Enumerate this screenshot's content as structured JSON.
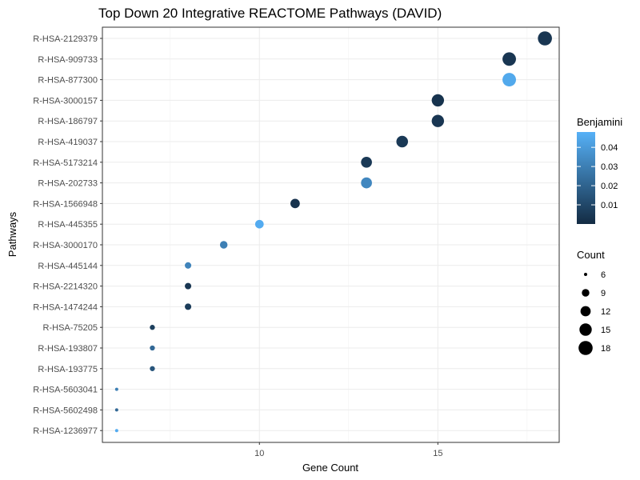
{
  "chart_data": {
    "type": "scatter",
    "title": "Top Down 20 Integrative REACTOME Pathways (DAVID)",
    "xlabel": "Gene Count",
    "ylabel": "Pathways",
    "xlim": [
      5.6,
      18.4
    ],
    "xticks": [
      10,
      15
    ],
    "grid": true,
    "categories": [
      "R-HSA-2129379",
      "R-HSA-909733",
      "R-HSA-877300",
      "R-HSA-3000157",
      "R-HSA-186797",
      "R-HSA-419037",
      "R-HSA-5173214",
      "R-HSA-202733",
      "R-HSA-1566948",
      "R-HSA-445355",
      "R-HSA-3000170",
      "R-HSA-445144",
      "R-HSA-2214320",
      "R-HSA-1474244",
      "R-HSA-75205",
      "R-HSA-193807",
      "R-HSA-193775",
      "R-HSA-5603041",
      "R-HSA-5602498",
      "R-HSA-1236977"
    ],
    "points": [
      {
        "pathway": "R-HSA-2129379",
        "count": 18,
        "benjamini": 0.004
      },
      {
        "pathway": "R-HSA-909733",
        "count": 17,
        "benjamini": 0.004
      },
      {
        "pathway": "R-HSA-877300",
        "count": 17,
        "benjamini": 0.045
      },
      {
        "pathway": "R-HSA-3000157",
        "count": 15,
        "benjamini": 0.003
      },
      {
        "pathway": "R-HSA-186797",
        "count": 15,
        "benjamini": 0.004
      },
      {
        "pathway": "R-HSA-419037",
        "count": 14,
        "benjamini": 0.005
      },
      {
        "pathway": "R-HSA-5173214",
        "count": 13,
        "benjamini": 0.005
      },
      {
        "pathway": "R-HSA-202733",
        "count": 13,
        "benjamini": 0.033
      },
      {
        "pathway": "R-HSA-1566948",
        "count": 11,
        "benjamini": 0.003
      },
      {
        "pathway": "R-HSA-445355",
        "count": 10,
        "benjamini": 0.046
      },
      {
        "pathway": "R-HSA-3000170",
        "count": 9,
        "benjamini": 0.03
      },
      {
        "pathway": "R-HSA-445144",
        "count": 8,
        "benjamini": 0.032
      },
      {
        "pathway": "R-HSA-2214320",
        "count": 8,
        "benjamini": 0.004
      },
      {
        "pathway": "R-HSA-1474244",
        "count": 8,
        "benjamini": 0.006
      },
      {
        "pathway": "R-HSA-75205",
        "count": 7,
        "benjamini": 0.007
      },
      {
        "pathway": "R-HSA-193807",
        "count": 7,
        "benjamini": 0.022
      },
      {
        "pathway": "R-HSA-193775",
        "count": 7,
        "benjamini": 0.015
      },
      {
        "pathway": "R-HSA-5603041",
        "count": 6,
        "benjamini": 0.03
      },
      {
        "pathway": "R-HSA-5602498",
        "count": 6,
        "benjamini": 0.022
      },
      {
        "pathway": "R-HSA-1236977",
        "count": 6,
        "benjamini": 0.046
      }
    ],
    "color_legend": {
      "title": "Benjamini",
      "range": [
        0.0,
        0.048
      ],
      "ticks": [
        0.01,
        0.02,
        0.03,
        0.04
      ],
      "tick_labels": [
        "0.01",
        "0.02",
        "0.03",
        "0.04"
      ],
      "low_color": "#132B43",
      "high_color": "#56B1F7"
    },
    "size_legend": {
      "title": "Count",
      "values": [
        6,
        9,
        12,
        15,
        18
      ],
      "labels": [
        "6",
        "9",
        "12",
        "15",
        "18"
      ]
    }
  }
}
